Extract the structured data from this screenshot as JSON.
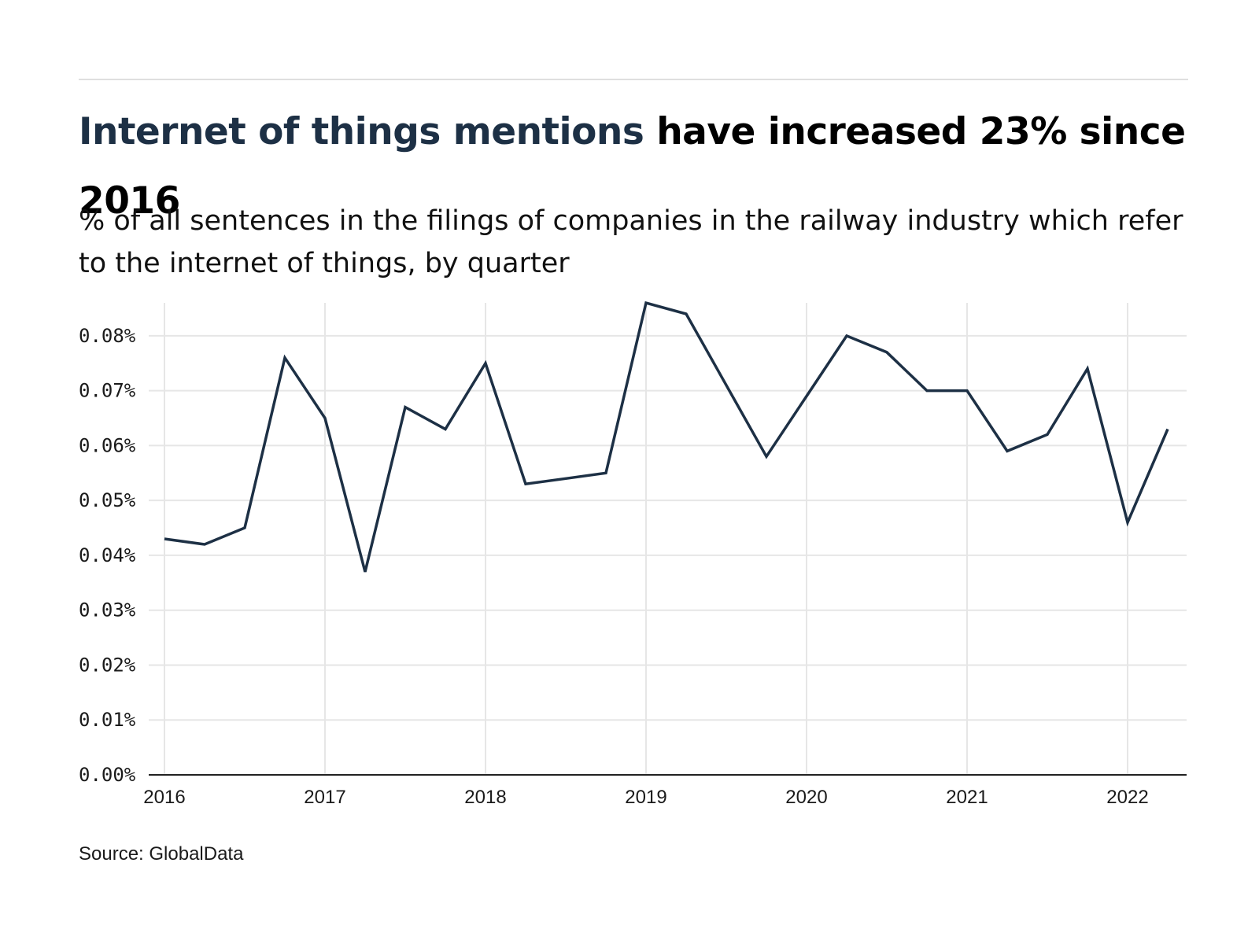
{
  "header": {
    "title_highlight": "Internet of things mentions",
    "title_rest": " have increased 23% since 2016",
    "subtitle": "% of all sentences in the filings of companies in the railway industry which refer to the internet of things, by quarter"
  },
  "footer": {
    "source": "Source: GlobalData"
  },
  "colors": {
    "line": "#1d3045",
    "grid": "#e6e6e6",
    "axis": "#222222",
    "highlight": "#1d3045"
  },
  "chart_data": {
    "type": "line",
    "title": "Internet of things mentions have increased 23% since 2016",
    "subtitle": "% of all sentences in the filings of companies in the railway industry which refer to the internet of things, by quarter",
    "xlabel": "",
    "ylabel": "",
    "x_ticks": [
      "2016",
      "2017",
      "2018",
      "2019",
      "2020",
      "2021",
      "2022"
    ],
    "y_ticks": [
      "0.00%",
      "0.01%",
      "0.02%",
      "0.03%",
      "0.04%",
      "0.05%",
      "0.06%",
      "0.07%",
      "0.08%"
    ],
    "ylim": [
      0,
      0.086
    ],
    "xlim": [
      "2016 Q1",
      "2022 Q2"
    ],
    "grid": true,
    "series": [
      {
        "x": [
          "2016 Q1",
          "2016 Q2",
          "2016 Q3",
          "2016 Q4",
          "2017 Q1",
          "2017 Q2",
          "2017 Q3",
          "2017 Q4",
          "2018 Q1",
          "2018 Q2",
          "2018 Q3",
          "2018 Q4",
          "2019 Q1",
          "2019 Q2",
          "2019 Q3",
          "2019 Q4",
          "2020 Q1",
          "2020 Q2",
          "2020 Q3",
          "2020 Q4",
          "2021 Q1",
          "2021 Q2",
          "2021 Q3",
          "2021 Q4",
          "2022 Q1",
          "2022 Q2"
        ],
        "values": [
          0.043,
          0.042,
          0.045,
          0.076,
          0.065,
          0.037,
          0.067,
          0.063,
          0.075,
          0.053,
          0.054,
          0.055,
          0.086,
          0.084,
          0.071,
          0.058,
          0.069,
          0.08,
          0.077,
          0.07,
          0.07,
          0.059,
          0.062,
          0.074,
          0.046,
          0.063
        ]
      }
    ]
  }
}
